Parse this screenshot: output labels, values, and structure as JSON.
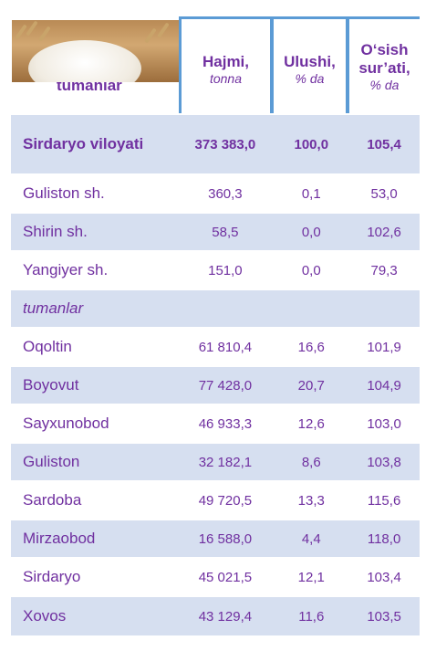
{
  "header": {
    "first_col_label": "tumanlar",
    "columns": [
      {
        "main": "Hajmi,",
        "sub": "tonna"
      },
      {
        "main": "Ulushi,",
        "sub": "% da"
      },
      {
        "main": "O‘sish sur’ati,",
        "sub": "% da"
      }
    ]
  },
  "total": {
    "name": "Sirdaryo viloyati",
    "volume": "373 383,0",
    "share": "100,0",
    "growth": "105,4"
  },
  "rows": [
    {
      "name": "Guliston sh.",
      "volume": "360,3",
      "share": "0,1",
      "growth": "53,0"
    },
    {
      "name": "Shirin sh.",
      "volume": "58,5",
      "share": "0,0",
      "growth": "102,6"
    },
    {
      "name": "Yangiyer sh.",
      "volume": "151,0",
      "share": "0,0",
      "growth": "79,3"
    },
    {
      "name": "tumanlar",
      "volume": "",
      "share": "",
      "growth": ""
    },
    {
      "name": "Oqoltin",
      "volume": "61 810,4",
      "share": "16,6",
      "growth": "101,9"
    },
    {
      "name": "Boyovut",
      "volume": "77 428,0",
      "share": "20,7",
      "growth": "104,9"
    },
    {
      "name": "Sayxunobod",
      "volume": "46 933,3",
      "share": "12,6",
      "growth": "103,0"
    },
    {
      "name": "Guliston",
      "volume": "32 182,1",
      "share": "8,6",
      "growth": "103,8"
    },
    {
      "name": "Sardoba",
      "volume": "49 720,5",
      "share": "13,3",
      "growth": "115,6"
    },
    {
      "name": "Mirzaobod",
      "volume": "16 588,0",
      "share": "4,4",
      "growth": "118,0"
    },
    {
      "name": "Sirdaryo",
      "volume": "45 021,5",
      "share": "12,1",
      "growth": "103,4"
    },
    {
      "name": "Xovos",
      "volume": "43 129,4",
      "share": "11,6",
      "growth": "103,5"
    }
  ]
}
